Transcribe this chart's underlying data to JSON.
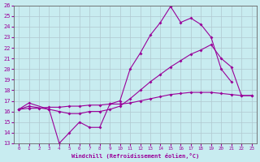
{
  "background_color": "#c8ecf0",
  "line_color": "#990099",
  "xlabel": "Windchill (Refroidissement éolien,°C)",
  "xlim": [
    -0.5,
    23.5
  ],
  "ylim": [
    13,
    26
  ],
  "xticks": [
    0,
    1,
    2,
    3,
    4,
    5,
    6,
    7,
    8,
    9,
    10,
    11,
    12,
    13,
    14,
    15,
    16,
    17,
    18,
    19,
    20,
    21,
    22,
    23
  ],
  "yticks": [
    13,
    14,
    15,
    16,
    17,
    18,
    19,
    20,
    21,
    22,
    23,
    24,
    25,
    26
  ],
  "line1_x": [
    0,
    1,
    3,
    4,
    5,
    6,
    7,
    8,
    9,
    10,
    11,
    12,
    13,
    14,
    15,
    16,
    17,
    18,
    19,
    20,
    21
  ],
  "line1_y": [
    16.2,
    16.8,
    16.2,
    13.0,
    14.0,
    15.0,
    14.5,
    14.5,
    16.7,
    17.0,
    20.0,
    21.5,
    23.2,
    24.4,
    25.9,
    24.4,
    24.8,
    24.2,
    23.0,
    20.0,
    18.8
  ],
  "line2_x": [
    0,
    1,
    3,
    4,
    5,
    6,
    7,
    8,
    9,
    10,
    11,
    12,
    13,
    14,
    15,
    16,
    17,
    18,
    19,
    20,
    21,
    22,
    23
  ],
  "line2_y": [
    16.2,
    16.5,
    16.2,
    16.0,
    15.8,
    15.8,
    16.0,
    16.0,
    16.2,
    16.5,
    17.2,
    18.0,
    18.8,
    19.5,
    20.2,
    20.8,
    21.4,
    21.8,
    22.3,
    21.0,
    20.2,
    17.5,
    17.5
  ],
  "line3_x": [
    0,
    1,
    2,
    3,
    4,
    5,
    6,
    7,
    8,
    9,
    10,
    11,
    12,
    13,
    14,
    15,
    16,
    17,
    18,
    19,
    20,
    21,
    22,
    23
  ],
  "line3_y": [
    16.2,
    16.3,
    16.3,
    16.4,
    16.4,
    16.5,
    16.5,
    16.6,
    16.6,
    16.7,
    16.7,
    16.8,
    17.0,
    17.2,
    17.4,
    17.6,
    17.7,
    17.8,
    17.8,
    17.8,
    17.7,
    17.6,
    17.5,
    17.5
  ]
}
